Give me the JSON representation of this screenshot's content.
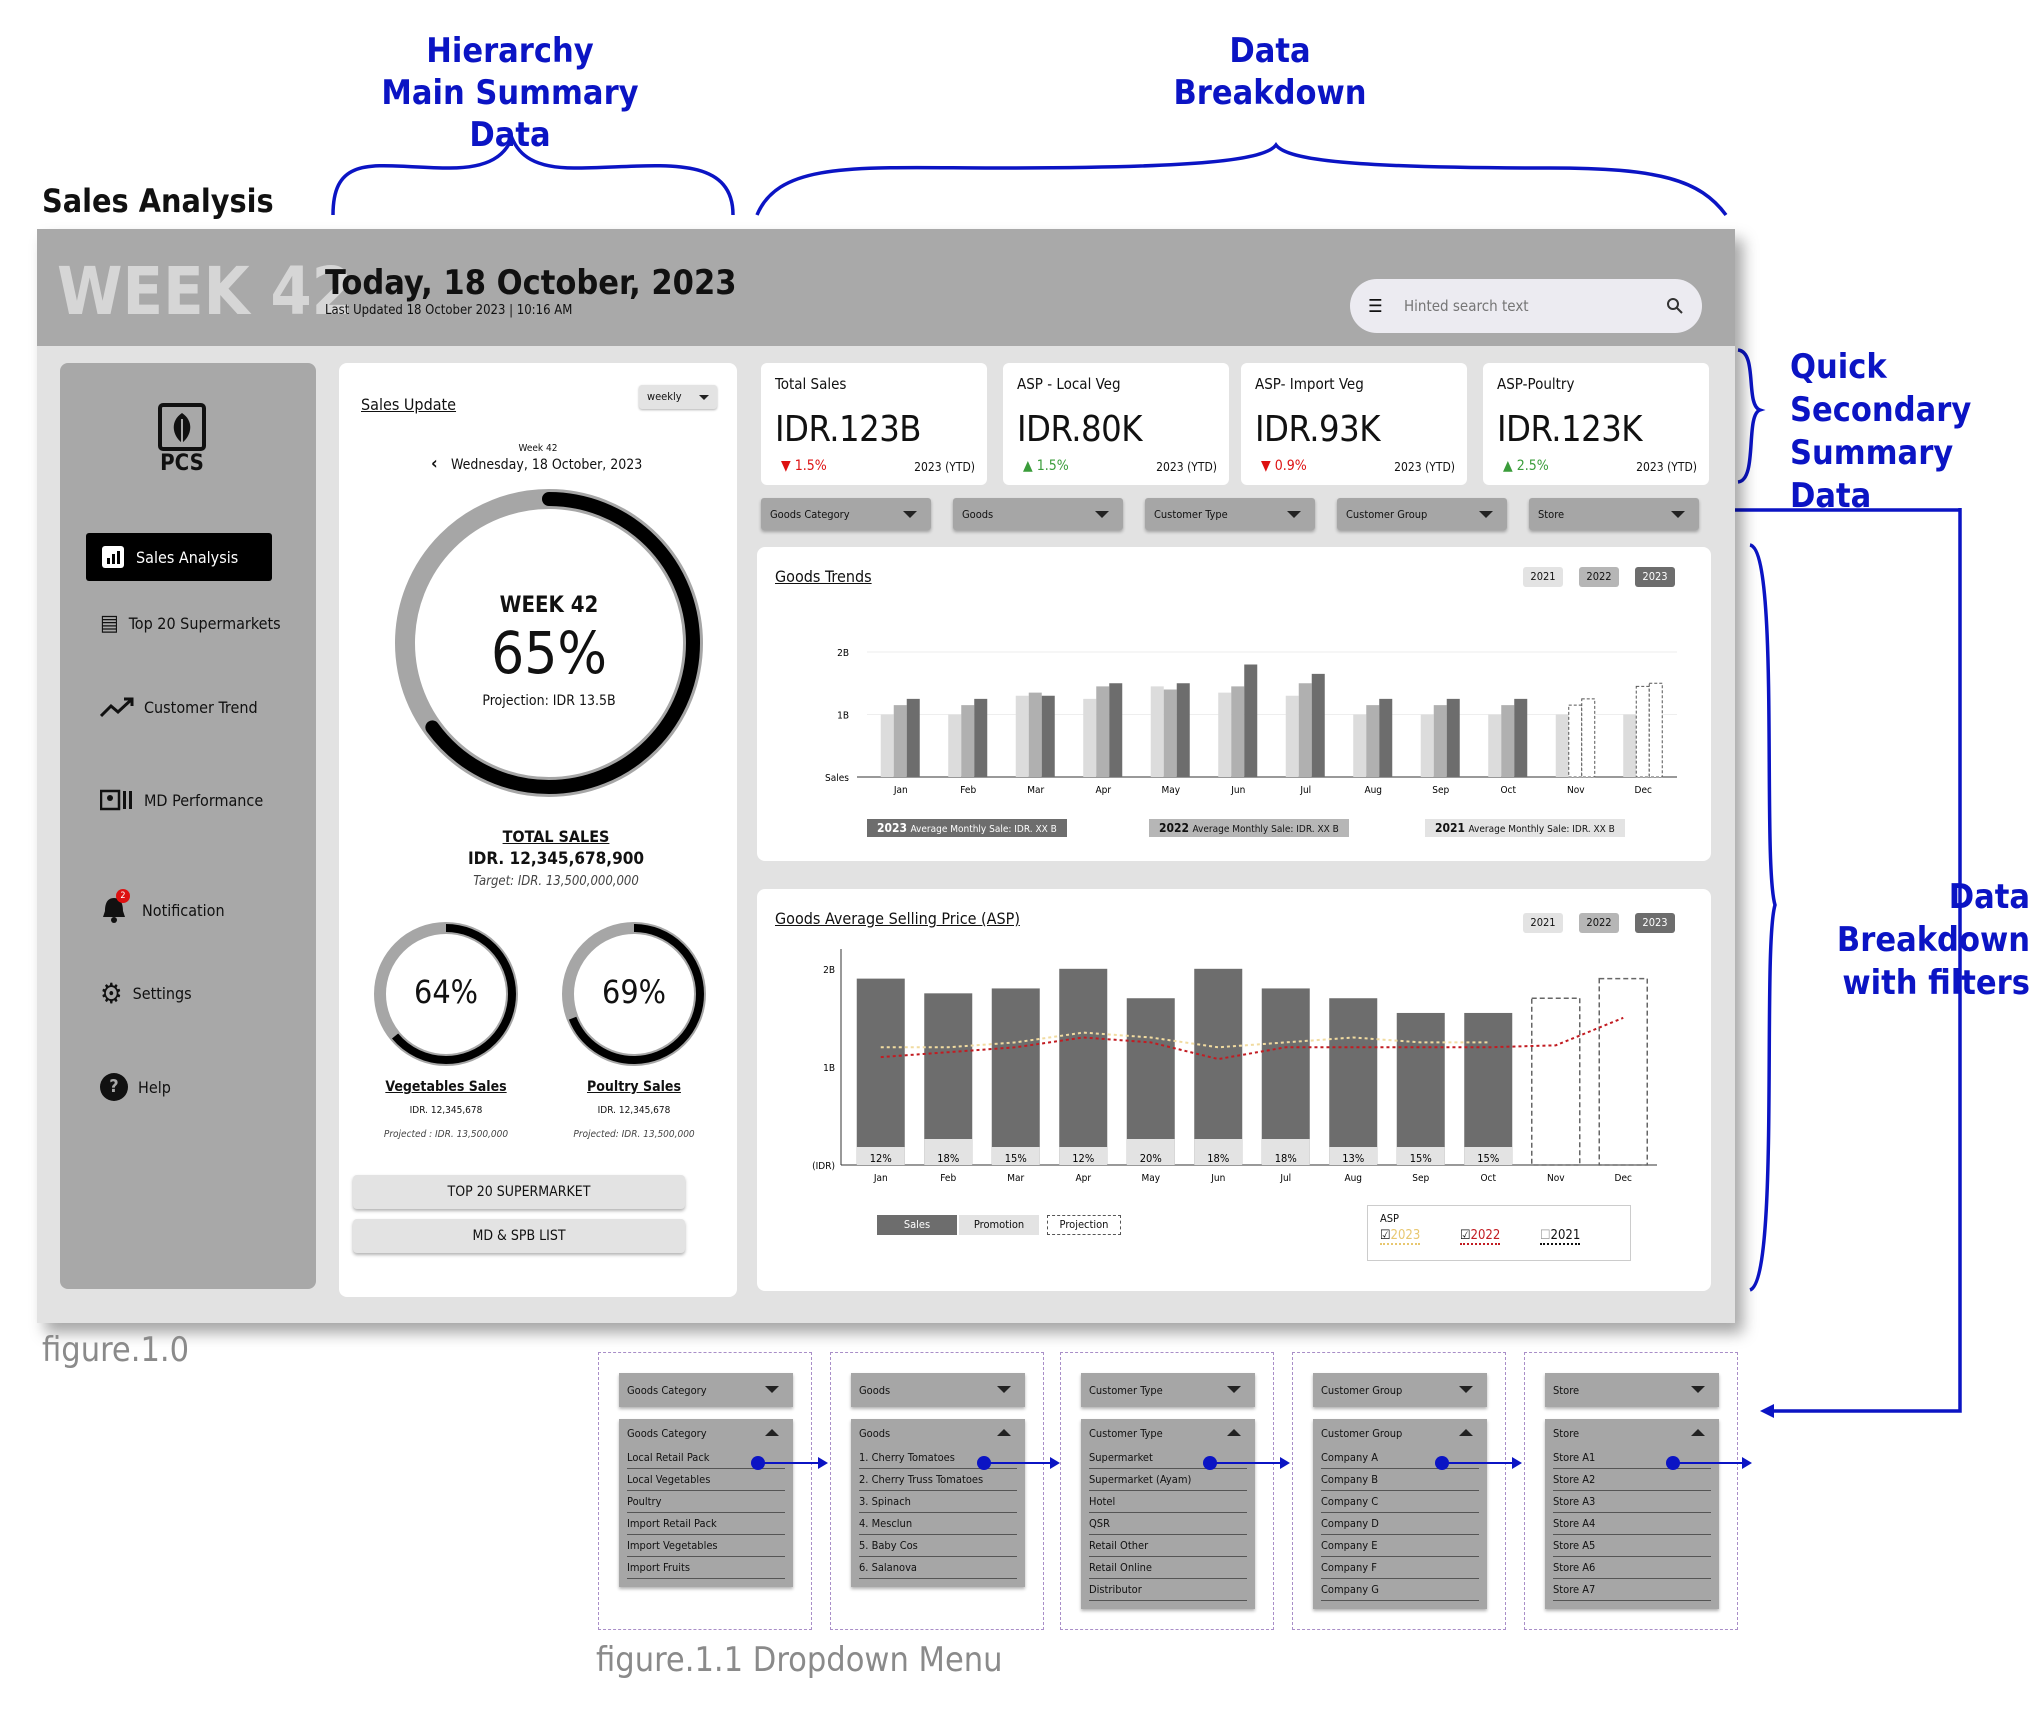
{
  "annotations": {
    "hierarchy_1": "Hierarchy",
    "hierarchy_2": "Main Summary Data",
    "breakdown_1": "Data",
    "breakdown_2": "Breakdown",
    "quick_1": "Quick",
    "quick_2": "Secondary",
    "quick_3": "Summary Data",
    "filters_1": "Data Breakdown",
    "filters_2": "with filters",
    "page_title": "Sales Analysis",
    "fig1": "figure.1.0",
    "fig2": "figure.1.1 Dropdown Menu"
  },
  "header": {
    "week": "WEEK 42",
    "today": "Today, 18 October, 2023",
    "updated": "Last Updated 18 October 2023 | 10:16 AM",
    "search_placeholder": "Hinted search text"
  },
  "sidebar": {
    "logo": "PCS",
    "items": [
      {
        "label": "Sales Analysis"
      },
      {
        "label": "Top 20 Supermarkets"
      },
      {
        "label": "Customer Trend"
      },
      {
        "label": "MD Performance"
      },
      {
        "label": "Notification",
        "badge": "2"
      },
      {
        "label": "Settings"
      },
      {
        "label": "Help"
      }
    ]
  },
  "sales_update": {
    "title": "Sales Update",
    "period": "weekly",
    "week_small": "Week 42",
    "date": "Wednesday, 18 October, 2023",
    "ring_week": "WEEK 42",
    "ring_pct": "65%",
    "ring_value": 65,
    "projection": "Projection: IDR 13.5B",
    "total_label": "TOTAL SALES",
    "total_value": "IDR. 12,345,678,900",
    "target": "Target: IDR. 13,500,000,000",
    "veg": {
      "pct": "64%",
      "value": 64,
      "label": "Vegetables Sales",
      "amount": "IDR. 12,345,678",
      "projected": "Projected : IDR. 13,500,000"
    },
    "poultry": {
      "pct": "69%",
      "value": 69,
      "label": "Poultry Sales",
      "amount": "IDR. 12,345,678",
      "projected": "Projected: IDR. 13,500,000"
    },
    "btn1": "TOP 20 SUPERMARKET",
    "btn2": "MD & SPB LIST"
  },
  "kpis": [
    {
      "title": "Total Sales",
      "value": "IDR.123B",
      "change": "1.5%",
      "dir": "down",
      "period": "2023 (YTD)"
    },
    {
      "title": "ASP - Local Veg",
      "value": "IDR.80K",
      "change": "1.5%",
      "dir": "up",
      "period": "2023 (YTD)"
    },
    {
      "title": "ASP- Import Veg",
      "value": "IDR.93K",
      "change": "0.9%",
      "dir": "down",
      "period": "2023 (YTD)"
    },
    {
      "title": "ASP-Poultry",
      "value": "IDR.123K",
      "change": "2.5%",
      "dir": "up",
      "period": "2023 (YTD)"
    }
  ],
  "filters": [
    "Goods Category",
    "Goods",
    "Customer Type",
    "Customer Group",
    "Store"
  ],
  "years": [
    "2021",
    "2022",
    "2023"
  ],
  "trends": {
    "title": "Goods Trends",
    "y_ticks": [
      "2B",
      "1B",
      "Sales"
    ],
    "avg": [
      {
        "year": "2023",
        "text": "Average Monthly Sale: IDR. XX B"
      },
      {
        "year": "2022",
        "text": "Average Monthly Sale: IDR. XX B"
      },
      {
        "year": "2021",
        "text": "Average Monthly Sale: IDR. XX B"
      }
    ]
  },
  "asp": {
    "title": "Goods Average Selling Price (ASP)",
    "y_ticks": [
      "2B",
      "1B",
      "(IDR)"
    ],
    "legend": {
      "sales": "Sales",
      "promotion": "Promotion",
      "projection": "Projection",
      "asp": "ASP",
      "y2023": "2023",
      "y2022": "2022",
      "y2021": "2021"
    }
  },
  "chart_data": [
    {
      "type": "bar",
      "title": "Goods Trends",
      "categories": [
        "Jan",
        "Feb",
        "Mar",
        "Apr",
        "May",
        "Jun",
        "Jul",
        "Aug",
        "Sep",
        "Oct",
        "Nov",
        "Dec"
      ],
      "ylim": [
        0,
        2.4
      ],
      "series": [
        {
          "name": "2021",
          "values": [
            1.0,
            1.0,
            1.3,
            1.25,
            1.45,
            1.35,
            1.3,
            1.0,
            1.0,
            1.0,
            1.0,
            1.0
          ]
        },
        {
          "name": "2022",
          "values": [
            1.15,
            1.15,
            1.35,
            1.45,
            1.4,
            1.45,
            1.5,
            1.15,
            1.15,
            1.15,
            1.15,
            1.45
          ]
        },
        {
          "name": "2023",
          "values": [
            1.25,
            1.25,
            1.3,
            1.5,
            1.5,
            1.8,
            1.65,
            1.25,
            1.25,
            1.25,
            1.25,
            1.5
          ]
        }
      ],
      "projected_months": [
        "Nov",
        "Dec"
      ]
    },
    {
      "type": "bar",
      "title": "Goods Average Selling Price (ASP)",
      "categories": [
        "Jan",
        "Feb",
        "Mar",
        "Apr",
        "May",
        "Jun",
        "Jul",
        "Aug",
        "Sep",
        "Oct",
        "Nov",
        "Dec"
      ],
      "ylim": [
        0,
        2.1
      ],
      "sales": [
        1.9,
        1.75,
        1.8,
        2.0,
        1.7,
        2.0,
        1.8,
        1.7,
        1.55,
        1.55,
        null,
        null
      ],
      "promotion_pct": [
        "12%",
        "18%",
        "15%",
        "12%",
        "20%",
        "18%",
        "18%",
        "13%",
        "15%",
        "15%",
        "",
        ""
      ],
      "projection": [
        null,
        null,
        null,
        null,
        null,
        null,
        null,
        null,
        null,
        null,
        1.7,
        1.9
      ],
      "asp_2023": [
        1.2,
        1.2,
        1.25,
        1.35,
        1.3,
        1.2,
        1.25,
        1.3,
        1.25,
        1.25,
        null,
        null
      ],
      "asp_2022": [
        1.1,
        1.15,
        1.2,
        1.3,
        1.25,
        1.08,
        1.2,
        1.2,
        1.2,
        1.2,
        1.22,
        1.5
      ]
    }
  ],
  "dropdowns": [
    {
      "label": "Goods Category",
      "items": [
        "Local Retail Pack",
        "Local Vegetables",
        "Poultry",
        "Import Retail Pack",
        "Import Vegetables",
        "Import Fruits"
      ]
    },
    {
      "label": "Goods",
      "items": [
        "1. Cherry Tomatoes",
        "2. Cherry Truss Tomatoes",
        "3. Spinach",
        "4. Mesclun",
        "5. Baby Cos",
        "6. Salanova"
      ]
    },
    {
      "label": "Customer Type",
      "items": [
        "Supermarket",
        "Supermarket (Ayam)",
        "Hotel",
        "QSR",
        "Retail Other",
        "Retail Online",
        "Distributor"
      ]
    },
    {
      "label": "Customer Group",
      "items": [
        "Company A",
        "Company B",
        "Company C",
        "Company D",
        "Company E",
        "Company F",
        "Company G"
      ]
    },
    {
      "label": "Store",
      "items": [
        "Store A1",
        "Store A2",
        "Store A3",
        "Store A4",
        "Store A5",
        "Store A6",
        "Store A7"
      ]
    }
  ]
}
